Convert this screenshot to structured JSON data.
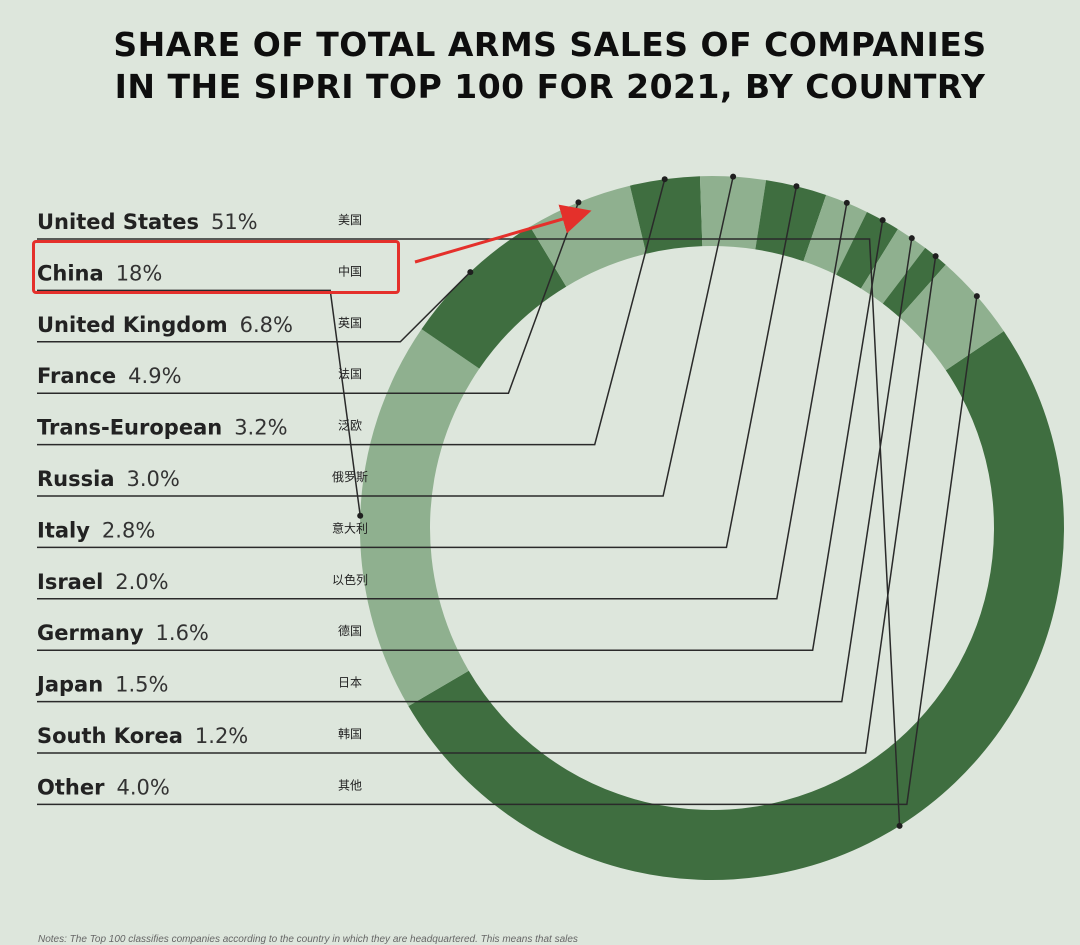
{
  "title": {
    "line1": "SHARE OF TOTAL ARMS SALES OF COMPANIES",
    "line2": "IN THE SIPRI TOP 100 FOR 2021, BY COUNTRY"
  },
  "note": "Notes: The Top 100 classifies companies according to the country in which they are headquartered. This means that sales",
  "colors": {
    "dark": "#3f6e40",
    "light": "#8fb08f",
    "highlight": "#e4302b",
    "background": "#dde6dc"
  },
  "chart_data": {
    "type": "pie",
    "title": "SHARE OF TOTAL ARMS SALES OF COMPANIES IN THE SIPRI TOP 100 FOR 2021, BY COUNTRY",
    "unit": "%",
    "series": [
      {
        "name": "United States",
        "value": 51,
        "label": "51%",
        "cn": "美国",
        "shade": "dark"
      },
      {
        "name": "China",
        "value": 18,
        "label": "18%",
        "cn": "中国",
        "shade": "light"
      },
      {
        "name": "United Kingdom",
        "value": 6.8,
        "label": "6.8%",
        "cn": "英国",
        "shade": "dark"
      },
      {
        "name": "France",
        "value": 4.9,
        "label": "4.9%",
        "cn": "法国",
        "shade": "light"
      },
      {
        "name": "Trans-European",
        "value": 3.2,
        "label": "3.2%",
        "cn": "泛欧",
        "shade": "dark"
      },
      {
        "name": "Russia",
        "value": 3.0,
        "label": "3.0%",
        "cn": "俄罗斯",
        "shade": "light"
      },
      {
        "name": "Italy",
        "value": 2.8,
        "label": "2.8%",
        "cn": "意大利",
        "shade": "dark"
      },
      {
        "name": "Israel",
        "value": 2.0,
        "label": "2.0%",
        "cn": "以色列",
        "shade": "light"
      },
      {
        "name": "Germany",
        "value": 1.6,
        "label": "1.6%",
        "cn": "德国",
        "shade": "dark"
      },
      {
        "name": "Japan",
        "value": 1.5,
        "label": "1.5%",
        "cn": "日本",
        "shade": "light"
      },
      {
        "name": "South Korea",
        "value": 1.2,
        "label": "1.2%",
        "cn": "韩国",
        "shade": "dark"
      },
      {
        "name": "Other",
        "value": 4.0,
        "label": "4.0%",
        "cn": "其他",
        "shade": "light"
      }
    ],
    "highlighted": "China"
  }
}
